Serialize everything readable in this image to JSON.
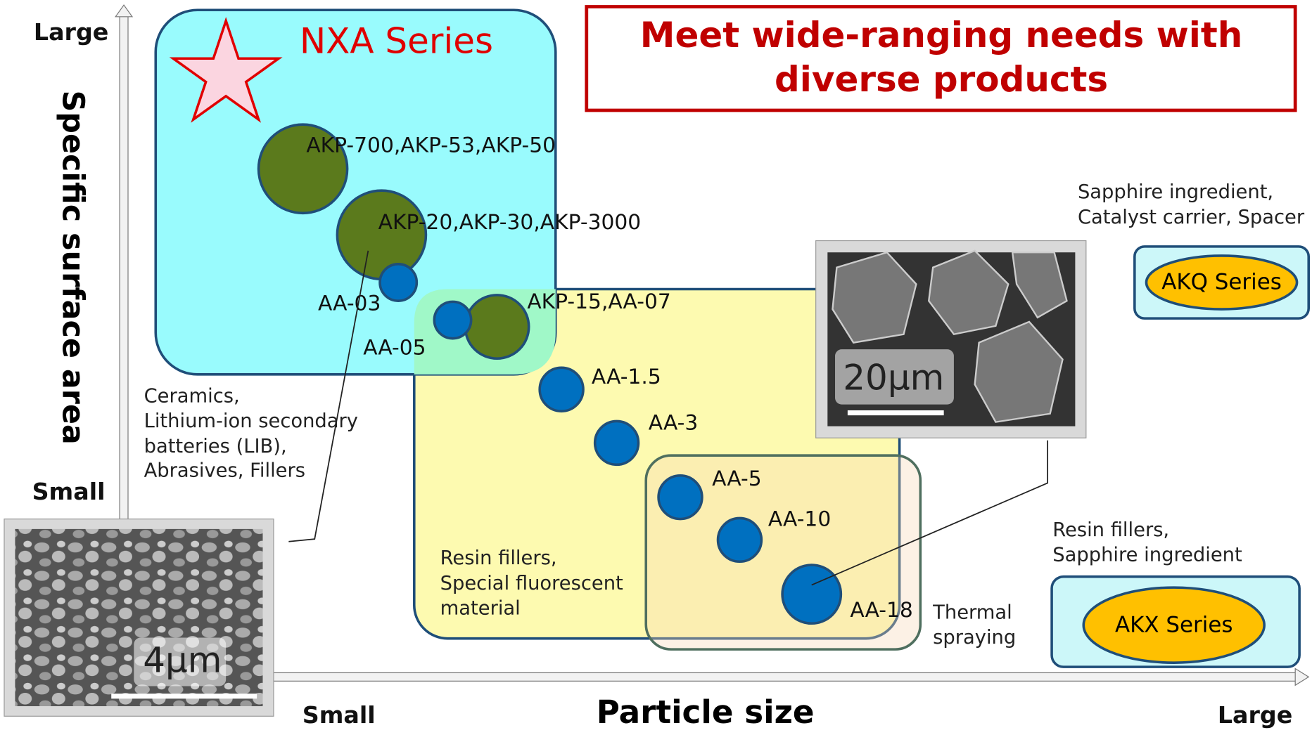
{
  "title": [
    "Meet wide-ranging needs with",
    "diverse products"
  ],
  "axes": {
    "y_label": "Specific surface area",
    "y_large": "Large",
    "y_small": "Small",
    "x_label": "Particle size",
    "x_small": "Small",
    "x_large": "Large"
  },
  "series": [
    "NXA Series",
    "AKQ Series",
    "AKX Series"
  ],
  "grades": [
    "AKP-700,AKP-53,AKP-50",
    "AKP-20,AKP-30,AKP-3000",
    "AA-03",
    "AKP-15,AA-07",
    "AA-05",
    "AA-1.5",
    "AA-3",
    "AA-5",
    "AA-10",
    "AA-18"
  ],
  "applications": [
    [
      "Ceramics,",
      "Lithium-ion secondary",
      "batteries (LIB),",
      "Abrasives, Fillers"
    ],
    [
      "Resin fillers,",
      "Special fluorescent",
      "material"
    ],
    [
      "Thermal",
      "spraying"
    ],
    [
      "Sapphire ingredient,",
      "Catalyst carrier, Spacer"
    ],
    [
      "Resin fillers,",
      "Sapphire ingredient"
    ]
  ],
  "images": [
    "4μm",
    "20μm"
  ]
}
